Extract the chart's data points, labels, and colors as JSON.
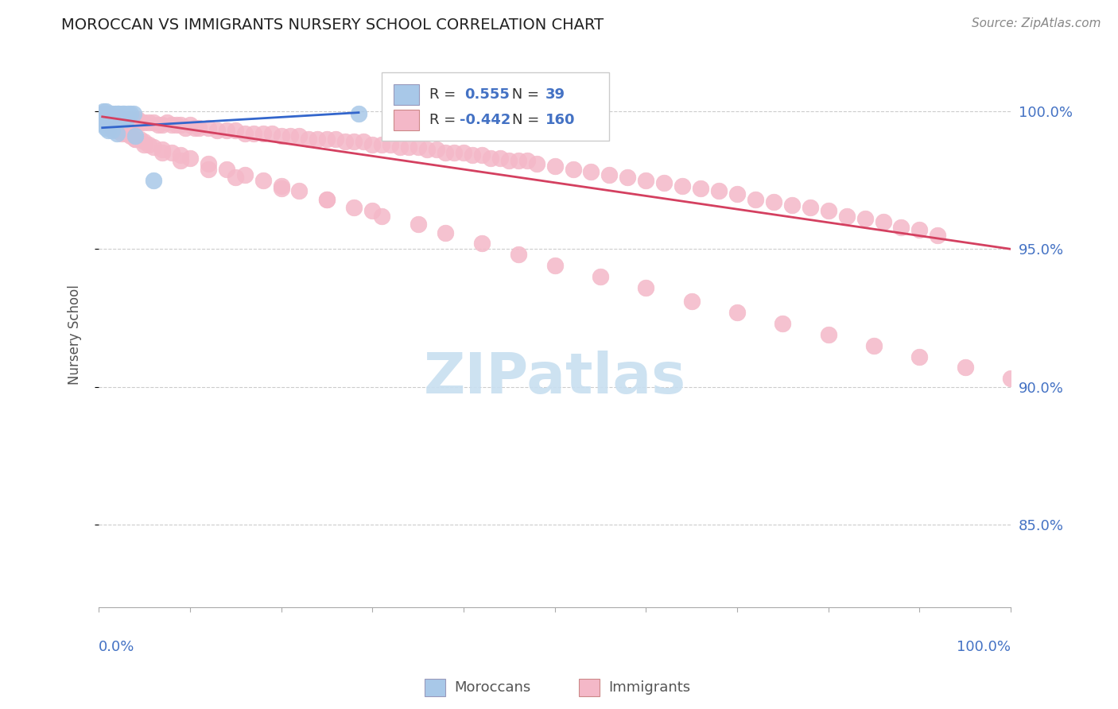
{
  "title": "MOROCCAN VS IMMIGRANTS NURSERY SCHOOL CORRELATION CHART",
  "source": "Source: ZipAtlas.com",
  "ylabel": "Nursery School",
  "ytick_labels": [
    "85.0%",
    "90.0%",
    "95.0%",
    "100.0%"
  ],
  "ytick_values": [
    0.85,
    0.9,
    0.95,
    1.0
  ],
  "xlim": [
    0.0,
    1.0
  ],
  "ylim": [
    0.82,
    1.018
  ],
  "legend_blue_r": "0.555",
  "legend_blue_n": "39",
  "legend_pink_r": "-0.442",
  "legend_pink_n": "160",
  "blue_scatter_color": "#a8c8e8",
  "blue_line_color": "#3366cc",
  "pink_scatter_color": "#f4b8c8",
  "pink_line_color": "#d44060",
  "watermark_color": "#c8dff0",
  "blue_scatter_x": [
    0.004,
    0.005,
    0.006,
    0.007,
    0.008,
    0.009,
    0.01,
    0.011,
    0.012,
    0.013,
    0.014,
    0.015,
    0.016,
    0.017,
    0.018,
    0.019,
    0.02,
    0.021,
    0.022,
    0.023,
    0.024,
    0.025,
    0.026,
    0.027,
    0.028,
    0.029,
    0.03,
    0.032,
    0.035,
    0.038,
    0.004,
    0.006,
    0.008,
    0.01,
    0.015,
    0.02,
    0.04,
    0.285,
    0.06
  ],
  "blue_scatter_y": [
    0.999,
    1.0,
    0.999,
    0.999,
    1.0,
    0.998,
    0.999,
    0.998,
    0.999,
    0.998,
    0.997,
    0.999,
    0.998,
    0.997,
    0.999,
    0.998,
    0.998,
    0.999,
    0.999,
    0.998,
    0.998,
    0.998,
    0.999,
    0.997,
    0.999,
    0.998,
    0.997,
    0.999,
    0.999,
    0.999,
    0.996,
    0.995,
    0.994,
    0.993,
    0.993,
    0.992,
    0.991,
    0.999,
    0.975
  ],
  "pink_scatter_x": [
    0.004,
    0.005,
    0.006,
    0.007,
    0.008,
    0.009,
    0.01,
    0.011,
    0.012,
    0.013,
    0.014,
    0.015,
    0.016,
    0.017,
    0.018,
    0.019,
    0.02,
    0.021,
    0.022,
    0.023,
    0.025,
    0.027,
    0.03,
    0.033,
    0.036,
    0.04,
    0.043,
    0.046,
    0.05,
    0.055,
    0.06,
    0.065,
    0.07,
    0.075,
    0.08,
    0.085,
    0.09,
    0.095,
    0.1,
    0.105,
    0.11,
    0.12,
    0.13,
    0.14,
    0.15,
    0.16,
    0.17,
    0.18,
    0.19,
    0.2,
    0.21,
    0.22,
    0.23,
    0.24,
    0.25,
    0.26,
    0.27,
    0.28,
    0.29,
    0.3,
    0.31,
    0.32,
    0.33,
    0.34,
    0.35,
    0.36,
    0.37,
    0.38,
    0.39,
    0.4,
    0.41,
    0.42,
    0.43,
    0.44,
    0.45,
    0.46,
    0.47,
    0.48,
    0.5,
    0.52,
    0.54,
    0.56,
    0.58,
    0.6,
    0.62,
    0.64,
    0.66,
    0.68,
    0.7,
    0.72,
    0.74,
    0.76,
    0.78,
    0.8,
    0.82,
    0.84,
    0.86,
    0.88,
    0.9,
    0.92,
    0.004,
    0.006,
    0.008,
    0.01,
    0.012,
    0.015,
    0.018,
    0.02,
    0.025,
    0.03,
    0.035,
    0.04,
    0.045,
    0.05,
    0.055,
    0.06,
    0.07,
    0.08,
    0.09,
    0.1,
    0.12,
    0.14,
    0.16,
    0.18,
    0.2,
    0.22,
    0.25,
    0.28,
    0.31,
    0.35,
    0.38,
    0.42,
    0.46,
    0.5,
    0.55,
    0.6,
    0.65,
    0.7,
    0.75,
    0.8,
    0.85,
    0.9,
    0.95,
    1.0,
    0.004,
    0.007,
    0.01,
    0.015,
    0.02,
    0.025,
    0.03,
    0.04,
    0.05,
    0.07,
    0.09,
    0.12,
    0.15,
    0.2,
    0.25,
    0.3
  ],
  "pink_scatter_y": [
    0.999,
    0.999,
    0.998,
    0.999,
    0.998,
    0.999,
    0.998,
    0.999,
    0.998,
    0.997,
    0.998,
    0.997,
    0.998,
    0.997,
    0.997,
    0.998,
    0.997,
    0.998,
    0.997,
    0.997,
    0.997,
    0.997,
    0.997,
    0.997,
    0.996,
    0.996,
    0.997,
    0.996,
    0.996,
    0.996,
    0.996,
    0.995,
    0.995,
    0.996,
    0.995,
    0.995,
    0.995,
    0.994,
    0.995,
    0.994,
    0.994,
    0.994,
    0.993,
    0.993,
    0.993,
    0.992,
    0.992,
    0.992,
    0.992,
    0.991,
    0.991,
    0.991,
    0.99,
    0.99,
    0.99,
    0.99,
    0.989,
    0.989,
    0.989,
    0.988,
    0.988,
    0.988,
    0.987,
    0.987,
    0.987,
    0.986,
    0.986,
    0.985,
    0.985,
    0.985,
    0.984,
    0.984,
    0.983,
    0.983,
    0.982,
    0.982,
    0.982,
    0.981,
    0.98,
    0.979,
    0.978,
    0.977,
    0.976,
    0.975,
    0.974,
    0.973,
    0.972,
    0.971,
    0.97,
    0.968,
    0.967,
    0.966,
    0.965,
    0.964,
    0.962,
    0.961,
    0.96,
    0.958,
    0.957,
    0.955,
    0.998,
    0.997,
    0.996,
    0.996,
    0.995,
    0.994,
    0.994,
    0.993,
    0.992,
    0.992,
    0.991,
    0.99,
    0.99,
    0.989,
    0.988,
    0.987,
    0.986,
    0.985,
    0.984,
    0.983,
    0.981,
    0.979,
    0.977,
    0.975,
    0.973,
    0.971,
    0.968,
    0.965,
    0.962,
    0.959,
    0.956,
    0.952,
    0.948,
    0.944,
    0.94,
    0.936,
    0.931,
    0.927,
    0.923,
    0.919,
    0.915,
    0.911,
    0.907,
    0.903,
    0.999,
    0.998,
    0.997,
    0.996,
    0.995,
    0.993,
    0.992,
    0.99,
    0.988,
    0.985,
    0.982,
    0.979,
    0.976,
    0.972,
    0.968,
    0.964
  ],
  "blue_line_x": [
    0.004,
    0.285
  ],
  "blue_line_y": [
    0.994,
    0.9995
  ],
  "pink_line_x": [
    0.004,
    1.0
  ],
  "pink_line_y": [
    0.998,
    0.95
  ]
}
